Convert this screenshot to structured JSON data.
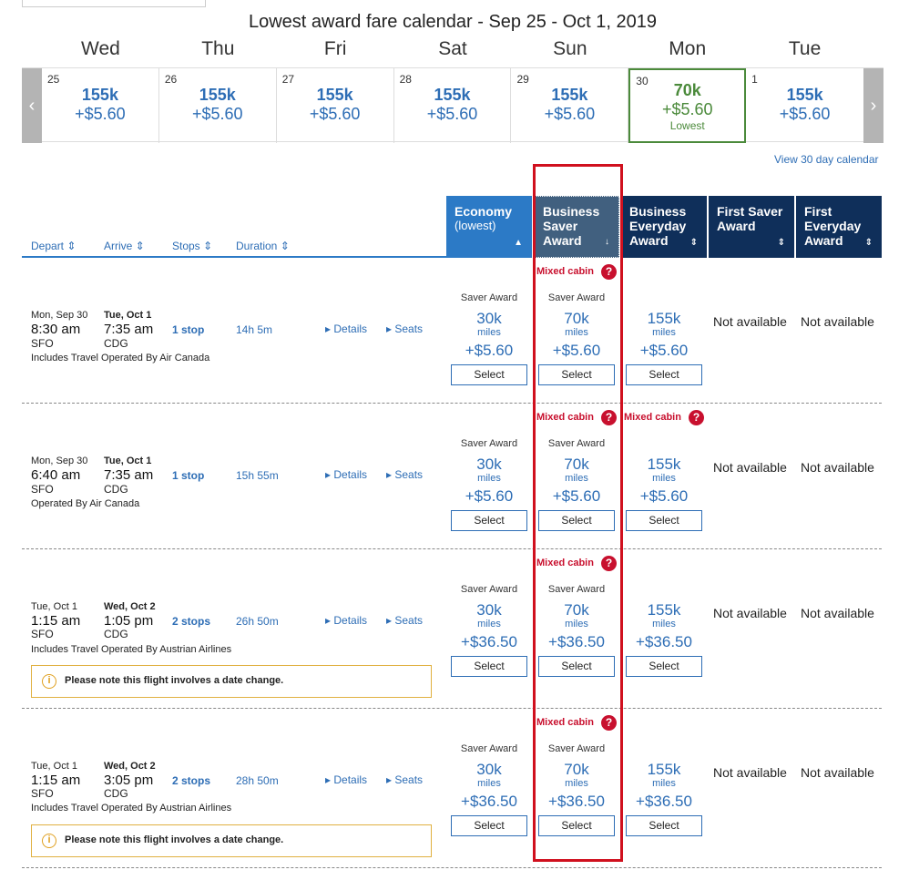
{
  "calendar": {
    "title": "Lowest award fare calendar - Sep 25 - Oct 1, 2019",
    "day_names": [
      "Wed",
      "Thu",
      "Fri",
      "Sat",
      "Sun",
      "Mon",
      "Tue"
    ],
    "days": [
      {
        "num": "25",
        "miles": "155k",
        "fee": "+$5.60"
      },
      {
        "num": "26",
        "miles": "155k",
        "fee": "+$5.60"
      },
      {
        "num": "27",
        "miles": "155k",
        "fee": "+$5.60"
      },
      {
        "num": "28",
        "miles": "155k",
        "fee": "+$5.60"
      },
      {
        "num": "29",
        "miles": "155k",
        "fee": "+$5.60"
      },
      {
        "num": "30",
        "miles": "70k",
        "fee": "+$5.60",
        "lowest": "Lowest"
      },
      {
        "num": "1",
        "miles": "155k",
        "fee": "+$5.60"
      }
    ],
    "prev_icon": "chevron-left-icon",
    "next_icon": "chevron-right-icon",
    "view30": "View 30 day calendar"
  },
  "columns": {
    "economy": {
      "title": "Economy",
      "sub": "(lowest)"
    },
    "bsa": {
      "line1": "Business",
      "line2": "Saver",
      "line3": "Award"
    },
    "bea": {
      "line1": "Business",
      "line2": "Everyday",
      "line3": "Award"
    },
    "fsa": {
      "line1": "First Saver",
      "line2": "Award"
    },
    "fea": {
      "line1": "First",
      "line2": "Everyday",
      "line3": "Award"
    }
  },
  "sort": {
    "depart": "Depart",
    "arrive": "Arrive",
    "stops": "Stops",
    "duration": "Duration"
  },
  "labels": {
    "mixed_cabin": "Mixed cabin",
    "saver_award": "Saver Award",
    "miles": "miles",
    "select": "Select",
    "not_available": "Not available",
    "details": "Details",
    "seats": "Seats",
    "date_change": "Please note this flight involves a date change."
  },
  "flights": [
    {
      "dep_date": "Mon, Sep 30",
      "arr_date": "Tue, Oct 1",
      "dep_time": "8:30 am",
      "arr_time": "7:35 am",
      "dep_ap": "SFO",
      "arr_ap": "CDG",
      "stops": "1 stop",
      "duration": "14h 5m",
      "operated": "Includes Travel Operated By Air Canada",
      "eco": {
        "miles": "30k",
        "fee": "+$5.60"
      },
      "bsa": {
        "miles": "70k",
        "fee": "+$5.60"
      },
      "bea": {
        "miles": "155k",
        "fee": "+$5.60"
      }
    },
    {
      "dep_date": "Mon, Sep 30",
      "arr_date": "Tue, Oct 1",
      "dep_time": "6:40 am",
      "arr_time": "7:35 am",
      "dep_ap": "SFO",
      "arr_ap": "CDG",
      "stops": "1 stop",
      "duration": "15h 55m",
      "operated": "Operated By Air Canada",
      "eco": {
        "miles": "30k",
        "fee": "+$5.60"
      },
      "bsa": {
        "miles": "70k",
        "fee": "+$5.60"
      },
      "bea": {
        "miles": "155k",
        "fee": "+$5.60"
      }
    },
    {
      "dep_date": "Tue, Oct 1",
      "arr_date": "Wed, Oct 2",
      "dep_time": "1:15 am",
      "arr_time": "1:05 pm",
      "dep_ap": "SFO",
      "arr_ap": "CDG",
      "stops": "2 stops",
      "duration": "26h 50m",
      "operated": "Includes Travel Operated By Austrian Airlines",
      "eco": {
        "miles": "30k",
        "fee": "+$36.50"
      },
      "bsa": {
        "miles": "70k",
        "fee": "+$36.50"
      },
      "bea": {
        "miles": "155k",
        "fee": "+$36.50"
      }
    },
    {
      "dep_date": "Tue, Oct 1",
      "arr_date": "Wed, Oct 2",
      "dep_time": "1:15 am",
      "arr_time": "3:05 pm",
      "dep_ap": "SFO",
      "arr_ap": "CDG",
      "stops": "2 stops",
      "duration": "28h 50m",
      "operated": "Includes Travel Operated By Austrian Airlines",
      "eco": {
        "miles": "30k",
        "fee": "+$36.50"
      },
      "bsa": {
        "miles": "70k",
        "fee": "+$36.50"
      },
      "bea": {
        "miles": "155k",
        "fee": "+$36.50"
      }
    }
  ]
}
